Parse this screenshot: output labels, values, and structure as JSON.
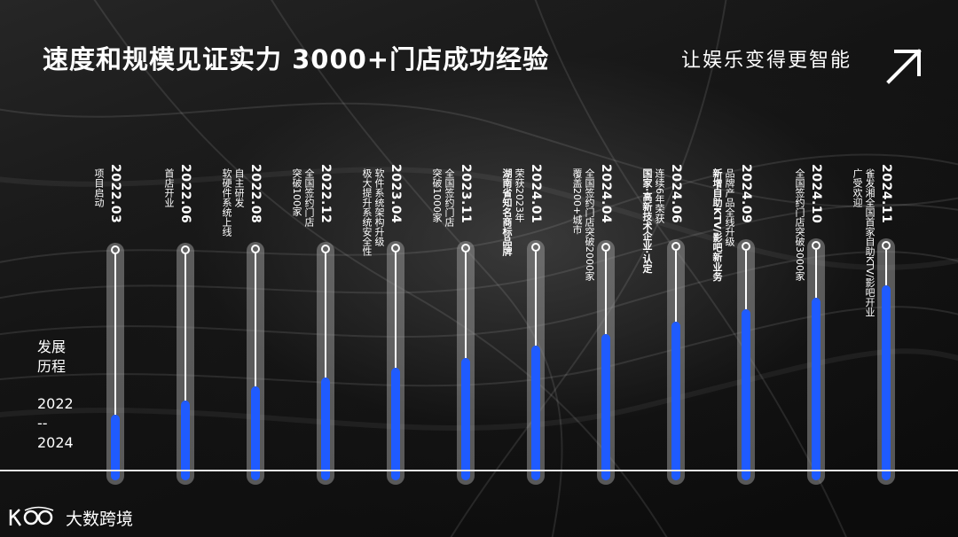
{
  "title": "速度和规模见证实力  3000+门店成功经验",
  "slogan": "让娱乐变得更智能",
  "side_label": [
    "发展",
    "历程"
  ],
  "side_range": [
    "2022",
    "--",
    "2024"
  ],
  "logo_text": "大数跨境",
  "accent_color": "#1f5bff",
  "icons": {
    "arrow": "arrow-up-right-icon",
    "logo": "logo-icon"
  },
  "milestones": [
    {
      "date": "2022.03",
      "lines": [
        "项目启动"
      ],
      "progress": 0.28
    },
    {
      "date": "2022.06",
      "lines": [
        "首店开业"
      ],
      "progress": 0.34
    },
    {
      "date": "2022.08",
      "lines": [
        "自主研发",
        "软硬件系统上线"
      ],
      "progress": 0.4
    },
    {
      "date": "2022.12",
      "lines": [
        "全国签约门店",
        "突破100家"
      ],
      "progress": 0.44
    },
    {
      "date": "2023.04",
      "lines": [
        "软件系统架构升级",
        "极大提升系统安全性"
      ],
      "progress": 0.48
    },
    {
      "date": "2023.11",
      "lines": [
        "全国签约门店",
        "突破1000家"
      ],
      "progress": 0.52
    },
    {
      "date": "2024.01",
      "lines": [
        "荣获2023年",
        "湖南省知名商标品牌"
      ],
      "progress": 0.57
    },
    {
      "date": "2024.04",
      "lines": [
        "全国签约门店突破2000家",
        "覆盖200+城市"
      ],
      "progress": 0.62
    },
    {
      "date": "2024.06",
      "lines": [
        "连续6年荣获",
        "国家·高新技术企业·认定"
      ],
      "progress": 0.67
    },
    {
      "date": "2024.09",
      "lines": [
        "品牌产品全线升级",
        "新增自助KTV/影吧新业务"
      ],
      "progress": 0.72
    },
    {
      "date": "2024.10",
      "lines": [
        "全国签约门店突破3000家"
      ],
      "progress": 0.77
    },
    {
      "date": "2024.11",
      "lines": [
        "雀发湘全国首家自助KTV/影吧开业",
        "广受欢迎"
      ],
      "progress": 0.82
    }
  ]
}
